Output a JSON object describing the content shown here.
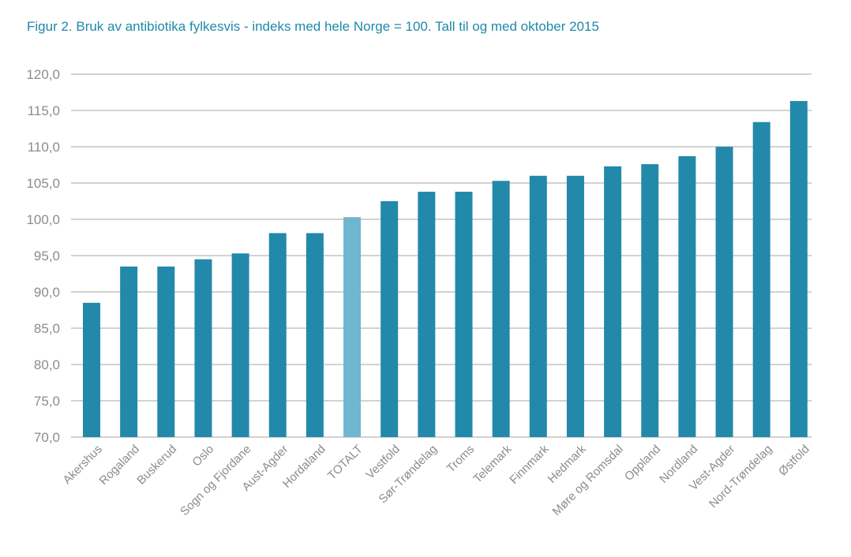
{
  "chart_data": {
    "type": "bar",
    "title": "Figur 2. Bruk av antibiotika fylkesvis - indeks med hele Norge = 100. Tall til og med oktober 2015",
    "xlabel": "",
    "ylabel": "",
    "ylim": [
      70,
      120
    ],
    "yticks": [
      "70,0",
      "75,0",
      "80,0",
      "85,0",
      "90,0",
      "95,0",
      "100,0",
      "105,0",
      "110,0",
      "115,0",
      "120,0"
    ],
    "grid": true,
    "categories": [
      "Akershus",
      "Rogaland",
      "Buskerud",
      "Oslo",
      "Sogn og Fjordane",
      "Aust-Agder",
      "Hordaland",
      "TOTALT",
      "Vestfold",
      "Sør-Trøndelag",
      "Troms",
      "Telemark",
      "Finnmark",
      "Hedmark",
      "Møre og Romsdal",
      "Oppland",
      "Nordland",
      "Vest-Agder",
      "Nord-Trøndelag",
      "Østfold"
    ],
    "values": [
      88.5,
      93.5,
      93.5,
      94.5,
      95.3,
      98.1,
      98.1,
      100.3,
      102.5,
      103.8,
      103.8,
      105.3,
      106.0,
      106.0,
      107.3,
      107.6,
      108.7,
      110.0,
      113.4,
      116.3
    ],
    "colors": {
      "bar": "#2389aa",
      "highlight": "#6fb6cf",
      "grid": "#a6a6a6",
      "text": "#8c8c8c",
      "title": "#1f8aa8"
    },
    "highlight_category": "TOTALT"
  }
}
